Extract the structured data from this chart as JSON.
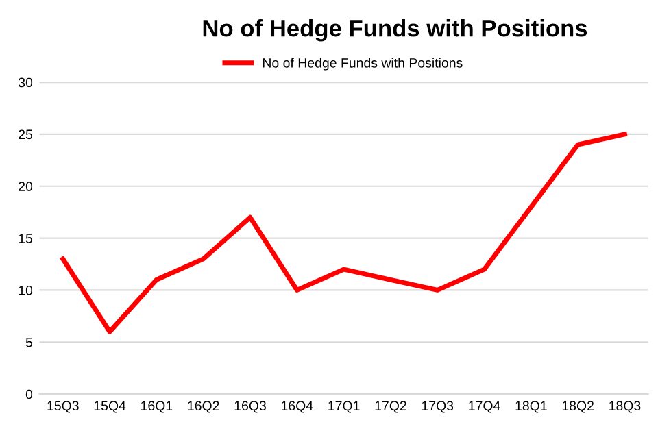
{
  "chart_data": {
    "type": "line",
    "title": "No of Hedge Funds with Positions",
    "categories": [
      "15Q3",
      "15Q4",
      "16Q1",
      "16Q2",
      "16Q3",
      "16Q4",
      "17Q1",
      "17Q2",
      "17Q3",
      "17Q4",
      "18Q1",
      "18Q2",
      "18Q3"
    ],
    "series": [
      {
        "name": "No of Hedge Funds with Positions",
        "color": "#ff0000",
        "values": [
          13,
          6,
          11,
          13,
          17,
          10,
          12,
          11,
          10,
          12,
          18,
          24,
          25
        ]
      }
    ],
    "ylim": [
      0,
      30
    ],
    "yticks": [
      0,
      5,
      10,
      15,
      20,
      25,
      30
    ],
    "grid": "y",
    "legend": "top",
    "marker": "none",
    "line_style": "solid"
  }
}
